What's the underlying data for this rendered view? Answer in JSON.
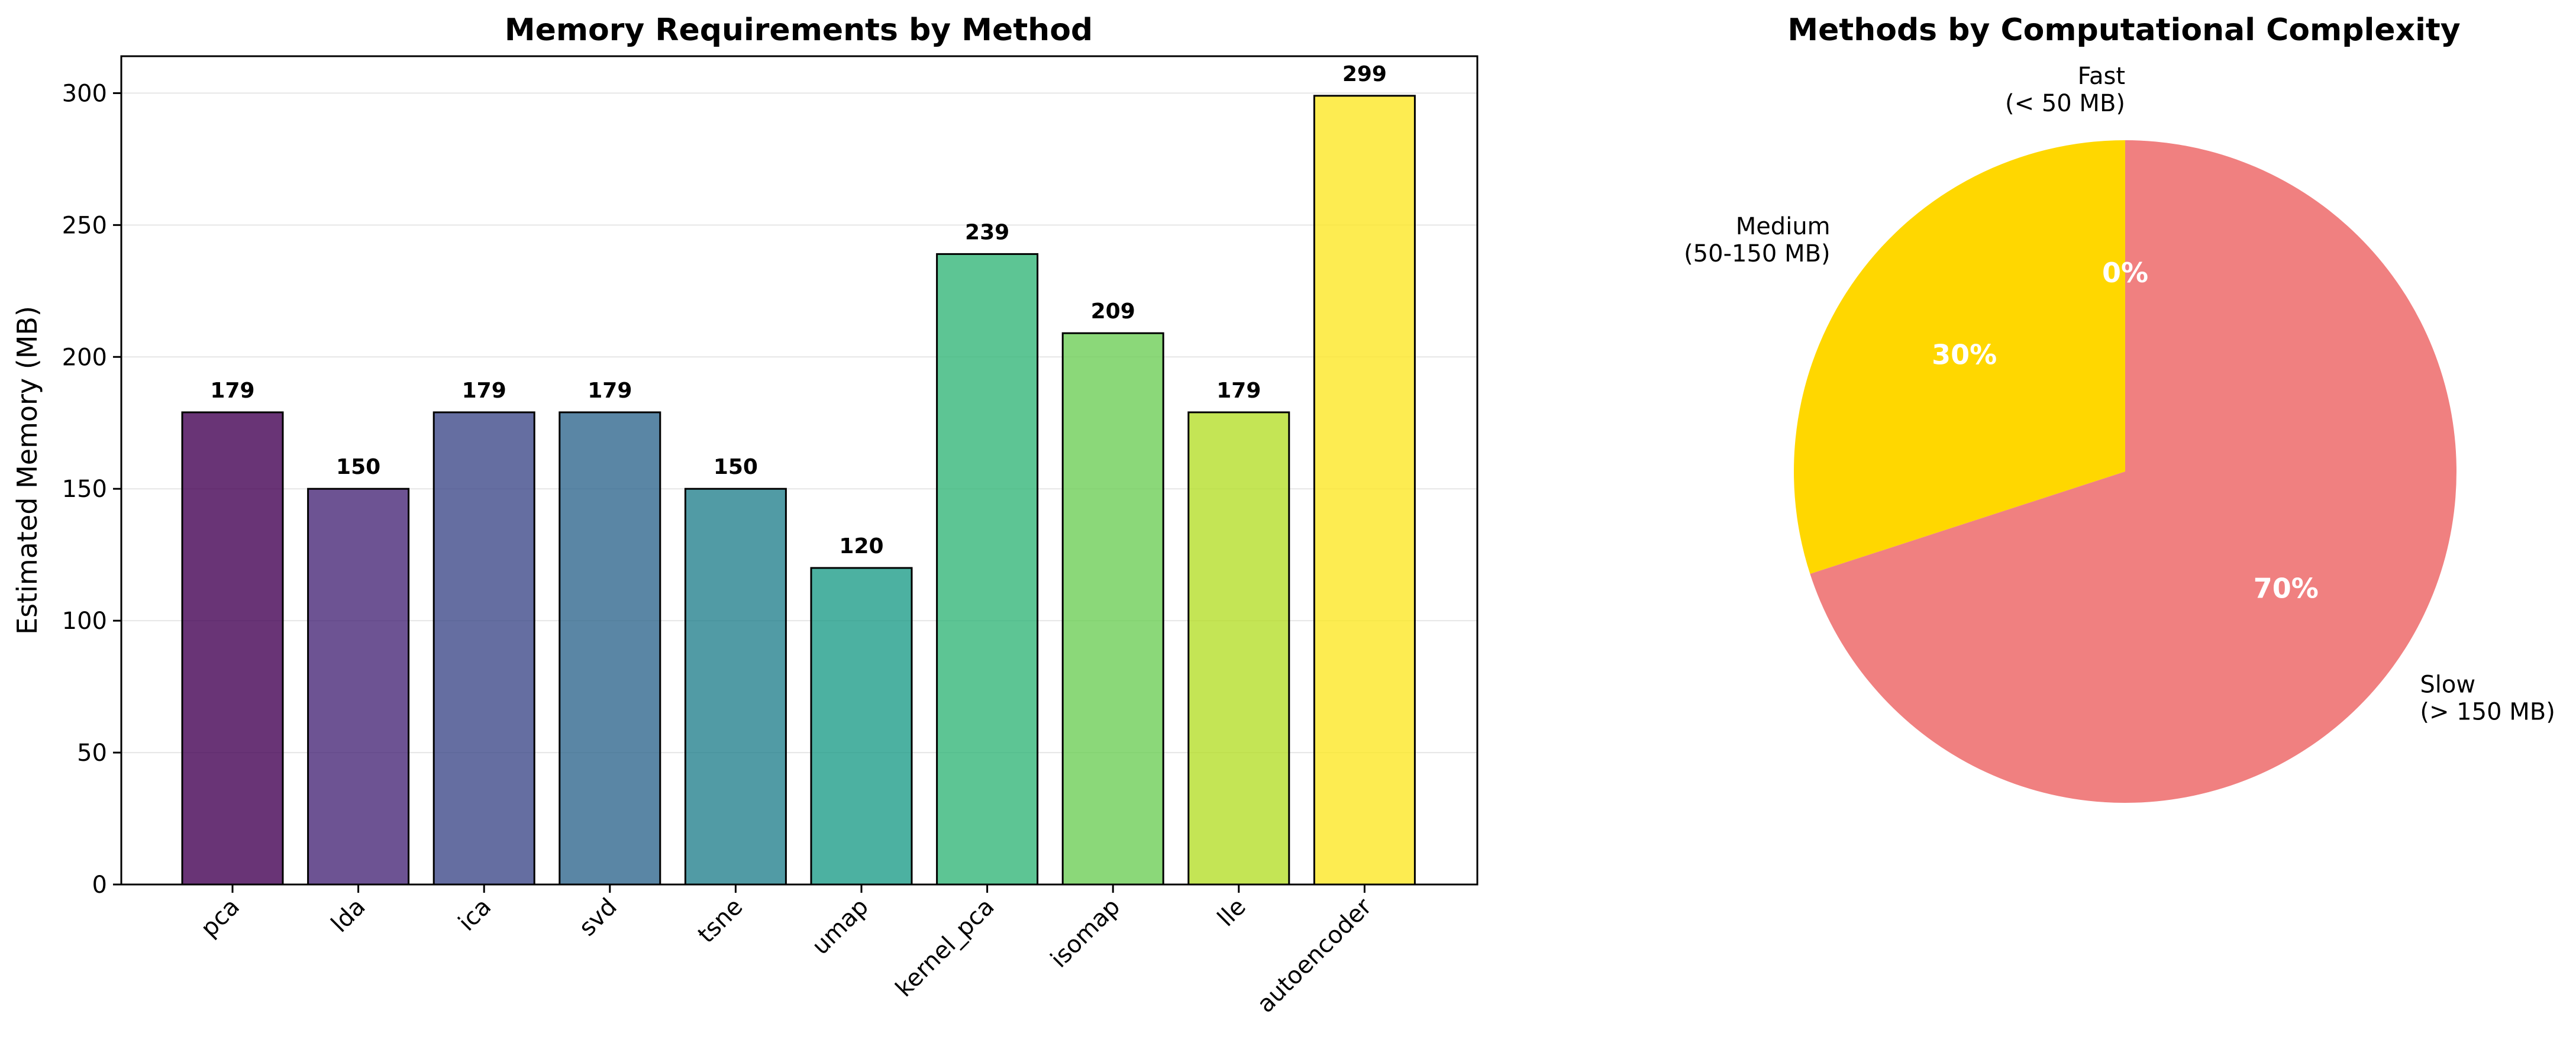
{
  "chart_data": [
    {
      "type": "bar",
      "title": "Memory Requirements by Method",
      "xlabel": "",
      "ylabel": "Estimated Memory (MB)",
      "ylim": [
        0,
        314
      ],
      "yticks": [
        0,
        50,
        100,
        150,
        200,
        250,
        300
      ],
      "grid": "y",
      "categories": [
        "pca",
        "lda",
        "ica",
        "svd",
        "tsne",
        "umap",
        "kernel_pca",
        "isomap",
        "lle",
        "autoencoder"
      ],
      "values": [
        179,
        150,
        179,
        179,
        150,
        120,
        239,
        209,
        179,
        299
      ],
      "data_labels": [
        "179",
        "150",
        "179",
        "179",
        "150",
        "120",
        "239",
        "209",
        "179",
        "299"
      ],
      "colors": [
        "#440154",
        "#482878",
        "#3e4a89",
        "#31688e",
        "#26828e",
        "#1f9e89",
        "#35b779",
        "#6ece58",
        "#b5de2b",
        "#fde725"
      ],
      "bar_opacity": 0.8,
      "edge_color": "#000000"
    },
    {
      "type": "pie",
      "title": "Methods by Computational Complexity",
      "slices": [
        {
          "label_line1": "Fast",
          "label_line2": "(< 50 MB)",
          "value": 0,
          "pct": "0%",
          "color": "#90ee90"
        },
        {
          "label_line1": "Medium",
          "label_line2": "(50-150 MB)",
          "value": 30,
          "pct": "30%",
          "color": "#ffd700"
        },
        {
          "label_line1": "Slow",
          "label_line2": "(> 150 MB)",
          "value": 70,
          "pct": "70%",
          "color": "#f08080"
        }
      ],
      "start_angle": 90,
      "direction": "counterclockwise"
    }
  ]
}
